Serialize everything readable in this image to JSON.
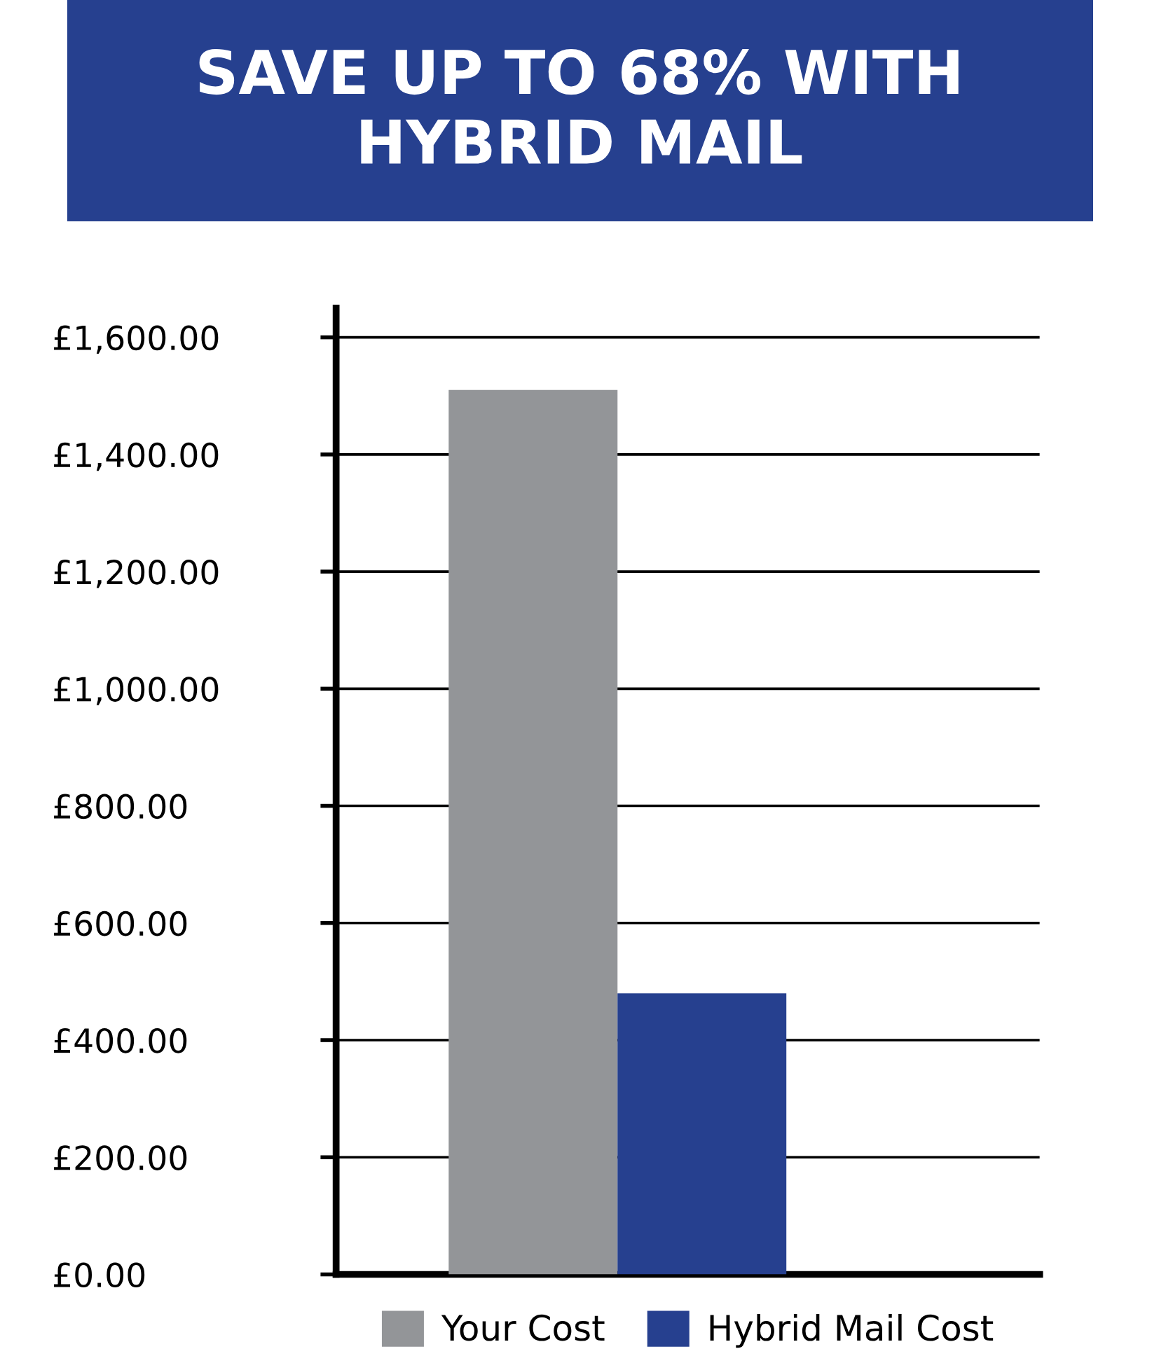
{
  "chart_data": {
    "type": "bar",
    "title": "SAVE UP TO 68% WITH\nHYBRID MAIL",
    "categories": [
      null
    ],
    "series": [
      {
        "name": "Your Cost",
        "color": "#939598",
        "values": [
          1510
        ]
      },
      {
        "name": "Hybrid Mail Cost",
        "color": "#26408f",
        "values": [
          480
        ]
      }
    ],
    "ylim": [
      0,
      1650
    ],
    "yticks": [
      {
        "value": 0,
        "label": "£0.00"
      },
      {
        "value": 200,
        "label": "£200.00"
      },
      {
        "value": 400,
        "label": "£400.00"
      },
      {
        "value": 600,
        "label": "£600.00"
      },
      {
        "value": 800,
        "label": "£800.00"
      },
      {
        "value": 1000,
        "label": "£1,000.00"
      },
      {
        "value": 1200,
        "label": "£1,200.00"
      },
      {
        "value": 1400,
        "label": "£1,400.00"
      },
      {
        "value": 1600,
        "label": "£1,600.00"
      }
    ],
    "grid": "y",
    "legend": "bottom"
  }
}
